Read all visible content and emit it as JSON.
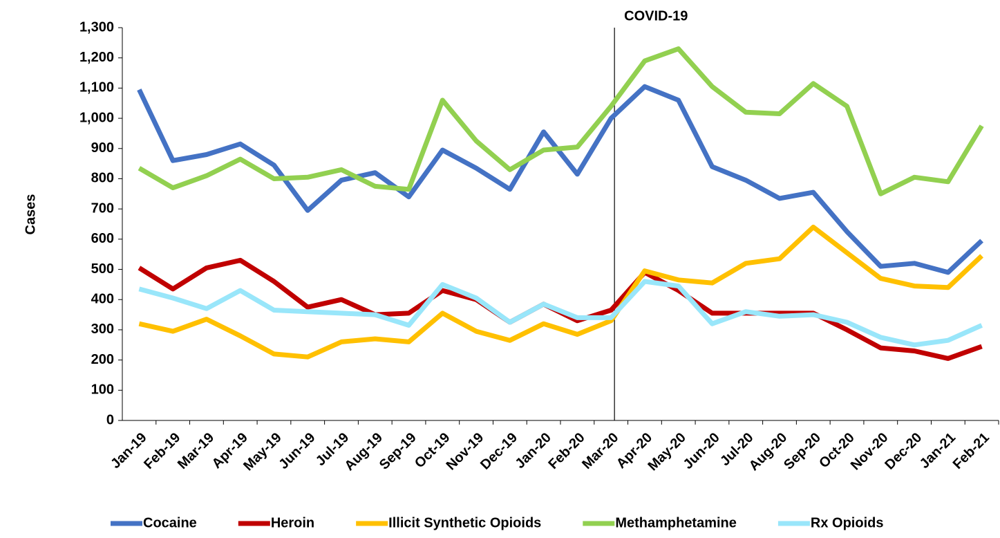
{
  "chart_data": {
    "type": "line",
    "y_label": "Cases",
    "annotation": {
      "text": "COVID-19",
      "x": "Mar-20"
    },
    "categories": [
      "Jan-19",
      "Feb-19",
      "Mar-19",
      "Apr-19",
      "May-19",
      "Jun-19",
      "Jul-19",
      "Aug-19",
      "Sep-19",
      "Oct-19",
      "Nov-19",
      "Dec-19",
      "Jan-20",
      "Feb-20",
      "Mar-20",
      "Apr-20",
      "May-20",
      "Jun-20",
      "Jul-20",
      "Aug-20",
      "Sep-20",
      "Oct-20",
      "Nov-20",
      "Dec-20",
      "Jan-21",
      "Feb-21"
    ],
    "series": [
      {
        "name": "Cocaine",
        "color": "#4472c4",
        "values": [
          1095,
          860,
          880,
          915,
          845,
          695,
          795,
          820,
          740,
          895,
          835,
          765,
          955,
          815,
          1000,
          1105,
          1060,
          840,
          795,
          735,
          755,
          625,
          510,
          520,
          490,
          595
        ]
      },
      {
        "name": "Heroin",
        "color": "#c00000",
        "values": [
          505,
          435,
          505,
          530,
          460,
          375,
          400,
          350,
          355,
          430,
          400,
          325,
          385,
          330,
          365,
          490,
          430,
          355,
          355,
          355,
          355,
          300,
          240,
          230,
          205,
          245
        ]
      },
      {
        "name": "Illicit Synthetic Opioids",
        "color": "#ffc000",
        "values": [
          320,
          295,
          335,
          280,
          220,
          210,
          260,
          270,
          260,
          355,
          295,
          265,
          320,
          285,
          330,
          495,
          465,
          455,
          520,
          535,
          640,
          555,
          470,
          445,
          440,
          545
        ]
      },
      {
        "name": "Methamphetamine",
        "color": "#92d050",
        "values": [
          835,
          770,
          810,
          865,
          800,
          805,
          830,
          775,
          765,
          1060,
          925,
          830,
          895,
          905,
          1040,
          1190,
          1230,
          1105,
          1020,
          1015,
          1115,
          1040,
          750,
          805,
          790,
          975
        ]
      },
      {
        "name": "Rx Opioids",
        "color": "#99e6fa",
        "values": [
          435,
          405,
          370,
          430,
          365,
          360,
          355,
          350,
          315,
          450,
          405,
          325,
          385,
          340,
          340,
          460,
          445,
          320,
          360,
          345,
          350,
          325,
          275,
          250,
          265,
          315
        ]
      }
    ],
    "ylim": [
      0,
      1300
    ],
    "yticks": [
      0,
      100,
      200,
      300,
      400,
      500,
      600,
      700,
      800,
      900,
      {
        "value": 1000,
        "label": "1,000"
      },
      {
        "value": 1100,
        "label": "1,100"
      },
      {
        "value": 1200,
        "label": "1,200"
      },
      {
        "value": 1300,
        "label": "1,300"
      }
    ],
    "legend": "bottom"
  }
}
